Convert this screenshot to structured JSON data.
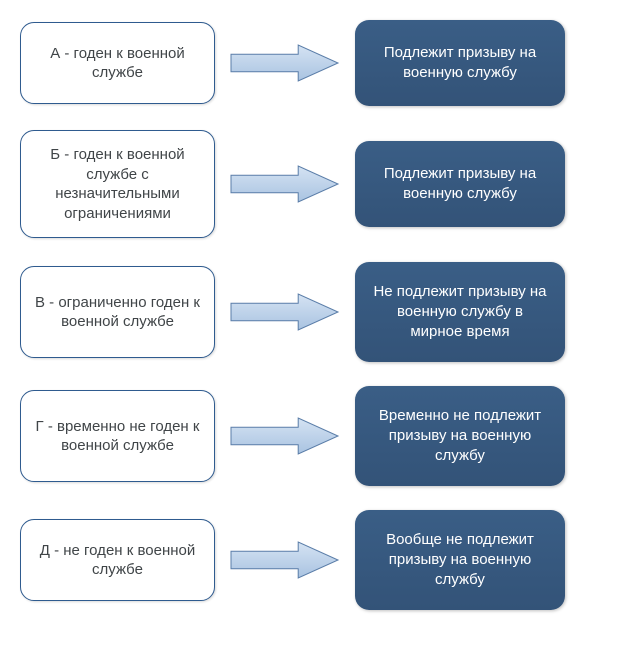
{
  "diagram": {
    "type": "flowchart",
    "background_color": "#ffffff",
    "left_box": {
      "bg": "#ffffff",
      "border_color": "#2f5b8f",
      "text_color": "#404548",
      "border_radius": 14,
      "fontsize": 15
    },
    "right_box": {
      "bg_gradient_top": "#3a5e86",
      "bg_gradient_bottom": "#335378",
      "text_color": "#ffffff",
      "border_radius": 14,
      "fontsize": 15
    },
    "arrow": {
      "fill_top": "#d5e3f3",
      "fill_bottom": "#a9c3e1",
      "stroke": "#5a7da8",
      "width": 110,
      "height": 40
    },
    "rows": [
      {
        "left": "А - годен к военной службе",
        "right": "Подлежит призыву на военную службу",
        "left_height": 82,
        "right_height": 86
      },
      {
        "left": "Б - годен к военной службе с незначительными ограничениями",
        "right": "Подлежит призыву на военную службу",
        "left_height": 108,
        "right_height": 86
      },
      {
        "left": "В - ограниченно годен к военной службе",
        "right": "Не подлежит призыву на военную службу в мирное время",
        "left_height": 92,
        "right_height": 100
      },
      {
        "left": "Г - временно не годен к военной службе",
        "right": "Временно не подлежит призыву на военную службу",
        "left_height": 92,
        "right_height": 100
      },
      {
        "left": "Д - не годен к военной службе",
        "right": "Вообще не подлежит призыву на военную службу",
        "left_height": 82,
        "right_height": 100
      }
    ]
  }
}
